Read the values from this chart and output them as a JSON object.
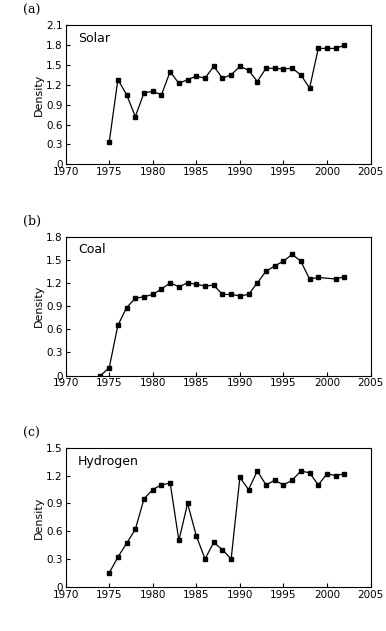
{
  "solar": {
    "label": "Solar",
    "panel": "(a)",
    "years": [
      1975,
      1976,
      1977,
      1978,
      1979,
      1980,
      1981,
      1982,
      1983,
      1984,
      1985,
      1986,
      1987,
      1988,
      1989,
      1990,
      1991,
      1992,
      1993,
      1994,
      1995,
      1996,
      1997,
      1998,
      1999,
      2000,
      2001,
      2002
    ],
    "values": [
      0.33,
      1.28,
      1.05,
      0.72,
      1.08,
      1.1,
      1.05,
      1.4,
      1.22,
      1.28,
      1.33,
      1.3,
      1.48,
      1.3,
      1.35,
      1.48,
      1.42,
      1.25,
      1.45,
      1.45,
      1.44,
      1.45,
      1.35,
      1.15,
      1.75,
      1.75,
      1.75,
      1.8
    ],
    "ylim": [
      0,
      2.1
    ],
    "yticks": [
      0,
      0.3,
      0.6,
      0.9,
      1.2,
      1.5,
      1.8,
      2.1
    ],
    "ytick_labels": [
      "0",
      "0.3",
      "0.6",
      "0.9",
      "1.2",
      "1.5",
      "1.8",
      "2.1"
    ]
  },
  "coal": {
    "label": "Coal",
    "panel": "(b)",
    "years": [
      1974,
      1975,
      1976,
      1977,
      1978,
      1979,
      1980,
      1981,
      1982,
      1983,
      1984,
      1985,
      1986,
      1987,
      1988,
      1989,
      1990,
      1991,
      1992,
      1993,
      1994,
      1995,
      1996,
      1997,
      1998,
      1999,
      2001,
      2002
    ],
    "values": [
      0.0,
      0.1,
      0.65,
      0.88,
      1.0,
      1.02,
      1.05,
      1.12,
      1.2,
      1.15,
      1.2,
      1.18,
      1.16,
      1.17,
      1.05,
      1.05,
      1.03,
      1.05,
      1.2,
      1.35,
      1.42,
      1.48,
      1.57,
      1.48,
      1.25,
      1.27,
      1.25,
      1.28
    ],
    "ylim": [
      0,
      1.8
    ],
    "yticks": [
      0,
      0.3,
      0.6,
      0.9,
      1.2,
      1.5,
      1.8
    ],
    "ytick_labels": [
      "0",
      "0.3",
      "0.6",
      "0.9",
      "1.2",
      "1.5",
      "1.8"
    ]
  },
  "hydrogen": {
    "label": "Hydrogen",
    "panel": "(c)",
    "years": [
      1975,
      1976,
      1977,
      1978,
      1979,
      1980,
      1981,
      1982,
      1983,
      1984,
      1985,
      1986,
      1987,
      1988,
      1989,
      1990,
      1991,
      1992,
      1993,
      1994,
      1995,
      1996,
      1997,
      1998,
      1999,
      2000,
      2001,
      2002
    ],
    "values": [
      0.15,
      0.32,
      0.47,
      0.62,
      0.95,
      1.05,
      1.1,
      1.12,
      0.5,
      0.9,
      0.55,
      0.3,
      0.48,
      0.4,
      0.3,
      1.18,
      1.05,
      1.25,
      1.1,
      1.15,
      1.1,
      1.15,
      1.25,
      1.23,
      1.1,
      1.22,
      1.2,
      1.22
    ],
    "ylim": [
      0,
      1.5
    ],
    "yticks": [
      0,
      0.3,
      0.6,
      0.9,
      1.2,
      1.5
    ],
    "ytick_labels": [
      "0",
      "0.3",
      "0.6",
      "0.9",
      "1.2",
      "1.5"
    ]
  },
  "xlim": [
    1970,
    2005
  ],
  "xticks": [
    1970,
    1975,
    1980,
    1985,
    1990,
    1995,
    2000,
    2005
  ],
  "xtick_labels": [
    "1970",
    "1975",
    "1980",
    "1985",
    "1990",
    "1995",
    "2000",
    "2005"
  ],
  "marker": "s",
  "markersize": 3.5,
  "linewidth": 0.9,
  "color": "black",
  "ylabel": "Density",
  "ylabel_fontsize": 8,
  "tick_fontsize": 7.5,
  "panel_fontsize": 9,
  "inner_label_fontsize": 9
}
